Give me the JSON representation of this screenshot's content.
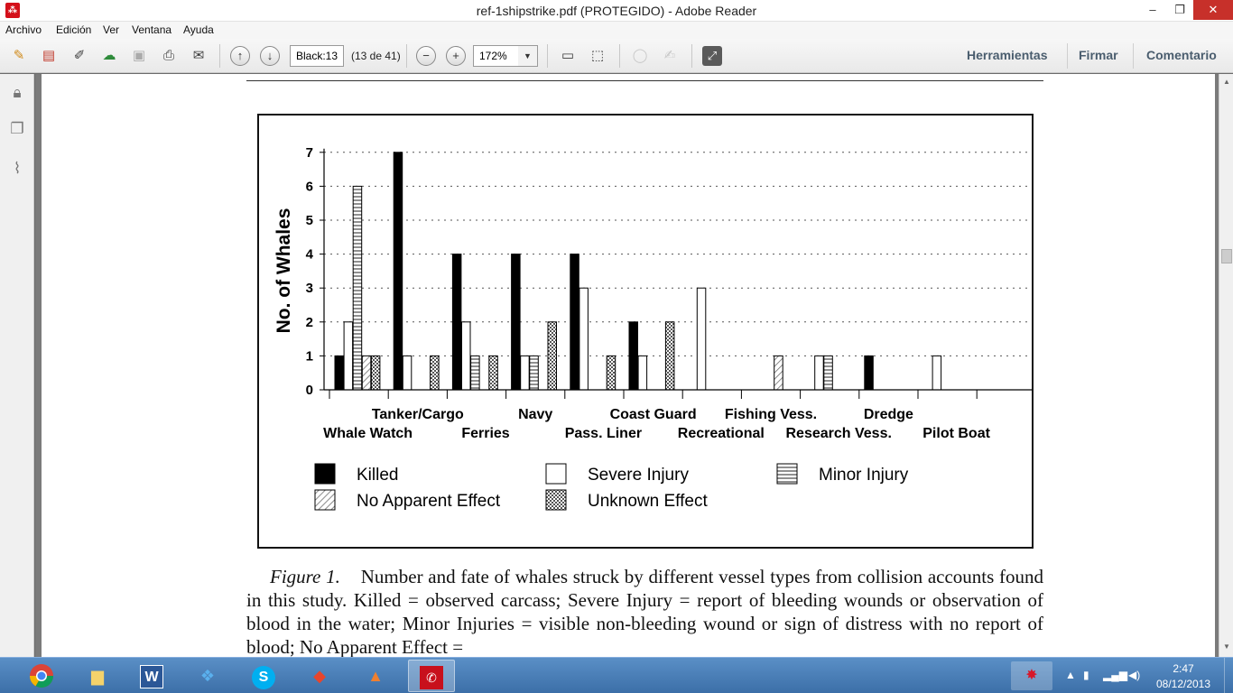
{
  "window": {
    "title": "ref-1shipstrike.pdf (PROTEGIDO) - Adobe Reader",
    "minimize": "–",
    "maximize": "❐",
    "close": "✕"
  },
  "menu": [
    "Archivo",
    "Edición",
    "Ver",
    "Ventana",
    "Ayuda"
  ],
  "toolbar": {
    "page_field": "Black:13",
    "page_count": "(13 de 41)",
    "zoom_value": "172%",
    "links": [
      "Herramientas",
      "Firmar",
      "Comentario"
    ]
  },
  "chart_data": {
    "type": "bar",
    "ylabel": "No. of Whales",
    "ylim": [
      0,
      7
    ],
    "yticks": [
      "0",
      "1",
      "2",
      "3",
      "4",
      "5",
      "6",
      "7"
    ],
    "grid": true,
    "categories": [
      "Whale Watch",
      "Tanker/Cargo",
      "Ferries",
      "Navy",
      "Pass. Liner",
      "Coast Guard",
      "Recreational",
      "Fishing Vess.",
      "Research Vess.",
      "Dredge",
      "Pilot Boat"
    ],
    "series": [
      {
        "name": "Killed",
        "pattern": "solid",
        "values": [
          1,
          7,
          4,
          4,
          4,
          2,
          0,
          0,
          0,
          1,
          0
        ]
      },
      {
        "name": "Severe Injury",
        "pattern": "open",
        "values": [
          2,
          1,
          2,
          1,
          3,
          1,
          3,
          0,
          1,
          0,
          1
        ]
      },
      {
        "name": "Minor Injury",
        "pattern": "hstripe",
        "values": [
          6,
          0,
          1,
          1,
          0,
          0,
          0,
          0,
          1,
          0,
          0
        ]
      },
      {
        "name": "No Apparent Effect",
        "pattern": "diag",
        "values": [
          1,
          0,
          0,
          0,
          0,
          0,
          0,
          1,
          0,
          0,
          0
        ]
      },
      {
        "name": "Unknown Effect",
        "pattern": "checker",
        "values": [
          1,
          1,
          1,
          2,
          1,
          2,
          0,
          0,
          0,
          0,
          0
        ]
      }
    ],
    "legend": "bottom"
  },
  "caption": {
    "label": "Figure 1.",
    "text": "Number and fate of whales struck by different vessel types from collision accounts found in this study. Killed = observed carcass; Severe Injury = report of bleeding wounds or observation of blood in the water; Minor Injuries = visible non-bleeding wound or sign of distress with no report of blood; No Apparent Effect ="
  },
  "taskbar": {
    "apps": [
      "chrome-icon",
      "file-explorer-icon",
      "word-icon",
      "dropbox-icon",
      "skype-icon",
      "git-icon",
      "matlab-icon",
      "adobe-reader-icon"
    ],
    "word_glyph": "W",
    "skype_glyph": "S",
    "time": "2:47",
    "date": "08/12/2013"
  }
}
